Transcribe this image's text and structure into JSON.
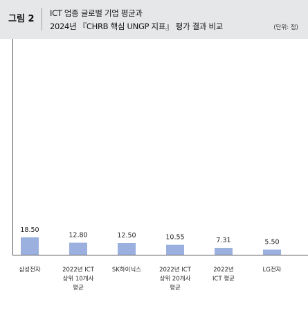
{
  "header": {
    "figure_label": "그림 2",
    "title_line1": "ICT 업종 글로벌 기업 평균과",
    "title_line2": "2024년 『CHRB 핵심 UNGP 지표』 평가 결과 비교",
    "unit": "(단위: 점)"
  },
  "chart_data": {
    "type": "bar",
    "categories": [
      [
        "삼성전자"
      ],
      [
        "2022년 ICT",
        "상위 10개사",
        "평균"
      ],
      [
        "SK하이닉스"
      ],
      [
        "2022년 ICT",
        "상위 20개사",
        "평균"
      ],
      [
        "2022년",
        "ICT 평균"
      ],
      [
        "LG전자"
      ]
    ],
    "values": [
      18.5,
      12.8,
      12.5,
      10.55,
      7.31,
      5.5
    ],
    "value_labels": [
      "18.50",
      "12.80",
      "12.50",
      "10.55",
      "7.31",
      "5.50"
    ],
    "ylim": [
      0,
      20
    ],
    "bar_color": "#9bb0de",
    "axis_color": "#555555",
    "grid": false,
    "legend": "none"
  }
}
